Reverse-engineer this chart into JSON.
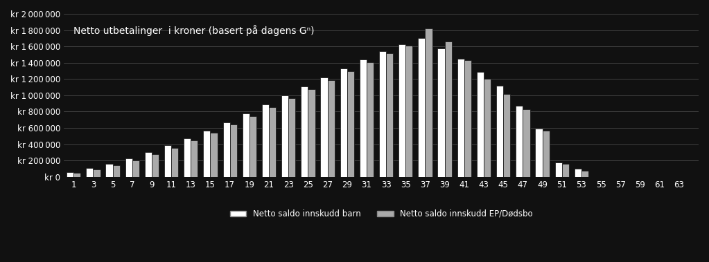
{
  "title": "Netto utbetalinger  i kroner (basert på dagens Gⁿ)",
  "background_color": "#111111",
  "text_color": "#ffffff",
  "bar_color_barn": "#ffffff",
  "bar_color_ep": "#aaaaaa",
  "legend_label_barn": "Netto saldo innskudd barn",
  "legend_label_ep": "Netto saldo innskudd EP/Dødsbo",
  "x_labels": [
    1,
    3,
    5,
    7,
    9,
    11,
    13,
    15,
    17,
    19,
    21,
    23,
    25,
    27,
    29,
    31,
    33,
    35,
    37,
    39,
    41,
    43,
    45,
    47,
    49,
    51,
    53,
    55,
    57,
    59,
    61,
    63
  ],
  "ylim": [
    0,
    2000000
  ],
  "yticks": [
    0,
    200000,
    400000,
    600000,
    800000,
    1000000,
    1200000,
    1400000,
    1600000,
    1800000,
    2000000
  ],
  "values_barn": [
    55000,
    105000,
    160000,
    225000,
    300000,
    385000,
    475000,
    570000,
    670000,
    780000,
    890000,
    1000000,
    1110000,
    1220000,
    1330000,
    1440000,
    1540000,
    1630000,
    1700000,
    1580000,
    1450000,
    1290000,
    1120000,
    870000,
    590000,
    180000,
    100000,
    0,
    0,
    0,
    0,
    0
  ],
  "values_ep": [
    50000,
    95000,
    145000,
    205000,
    275000,
    355000,
    445000,
    540000,
    640000,
    745000,
    855000,
    965000,
    1075000,
    1185000,
    1300000,
    1410000,
    1515000,
    1610000,
    1820000,
    1660000,
    1430000,
    1200000,
    1020000,
    830000,
    570000,
    160000,
    75000,
    0,
    0,
    0,
    0,
    0
  ]
}
